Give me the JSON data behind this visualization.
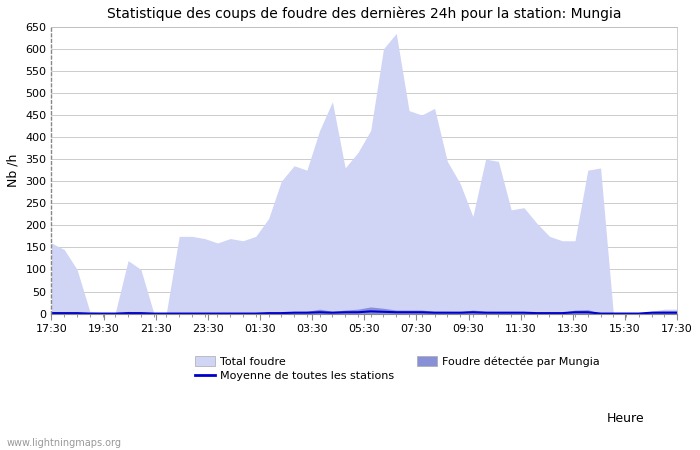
{
  "title": "Statistique des coups de foudre des dernières 24h pour la station: Mungia",
  "xlabel": "Heure",
  "ylabel": "Nb /h",
  "watermark": "www.lightningmaps.org",
  "ylim": [
    0,
    650
  ],
  "yticks": [
    0,
    50,
    100,
    150,
    200,
    250,
    300,
    350,
    400,
    450,
    500,
    550,
    600,
    650
  ],
  "x_labels": [
    "17:30",
    "19:30",
    "21:30",
    "23:30",
    "01:30",
    "03:30",
    "05:30",
    "07:30",
    "09:30",
    "11:30",
    "13:30",
    "15:30",
    "17:30"
  ],
  "total_foudre_color": "#d0d4f5",
  "foudre_mungia_color": "#8890d8",
  "moyenne_color": "#0000cc",
  "background_color": "#ffffff",
  "grid_color": "#cccccc",
  "title_fontsize": 10,
  "axis_fontsize": 8,
  "total_foudre": [
    160,
    145,
    100,
    5,
    2,
    2,
    120,
    100,
    2,
    2,
    175,
    175,
    170,
    160,
    170,
    165,
    175,
    215,
    300,
    335,
    325,
    415,
    480,
    330,
    365,
    415,
    600,
    635,
    460,
    450,
    465,
    345,
    295,
    220,
    350,
    345,
    235,
    240,
    205,
    175,
    165,
    165,
    325,
    330,
    0,
    0,
    0,
    5,
    10,
    10
  ],
  "foudre_mungia": [
    5,
    2,
    1,
    0,
    0,
    0,
    5,
    2,
    0,
    0,
    2,
    2,
    1,
    2,
    2,
    2,
    2,
    2,
    2,
    5,
    5,
    10,
    5,
    8,
    10,
    15,
    12,
    8,
    8,
    8,
    5,
    5,
    4,
    8,
    5,
    4,
    4,
    4,
    3,
    3,
    3,
    8,
    9,
    0,
    0,
    0,
    1,
    5,
    6,
    6
  ],
  "moyenne": [
    1,
    1,
    1,
    0,
    0,
    0,
    1,
    1,
    0,
    0,
    0,
    0,
    0,
    0,
    0,
    0,
    0,
    1,
    1,
    2,
    2,
    3,
    2,
    3,
    3,
    5,
    4,
    3,
    3,
    3,
    2,
    2,
    2,
    3,
    2,
    2,
    2,
    2,
    1,
    1,
    1,
    3,
    3,
    0,
    0,
    0,
    0,
    2,
    2,
    2
  ]
}
